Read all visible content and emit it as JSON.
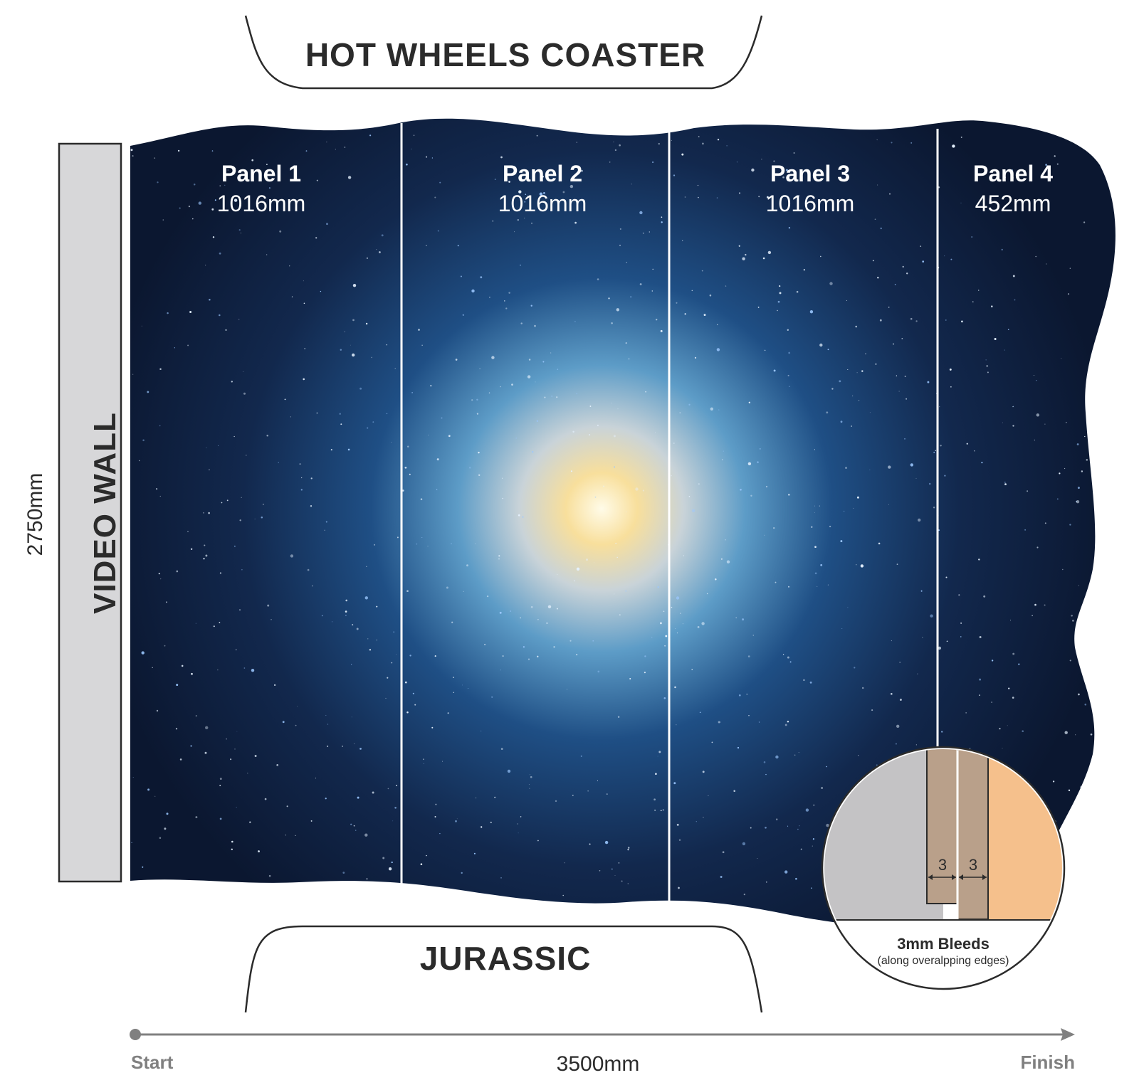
{
  "top_area": {
    "label": "HOT WHEELS COASTER"
  },
  "bottom_area": {
    "label": "JURASSIC"
  },
  "side_wall": {
    "label": "VIDEO WALL"
  },
  "height_dimension": "2750mm",
  "panels": [
    {
      "name": "Panel 1",
      "width": "1016mm"
    },
    {
      "name": "Panel 2",
      "width": "1016mm"
    },
    {
      "name": "Panel 3",
      "width": "1016mm"
    },
    {
      "name": "Panel 4",
      "width": "452mm"
    }
  ],
  "bleed_detail": {
    "left_value": "3",
    "right_value": "3",
    "title": "3mm Bleeds",
    "subtitle": "(along overalpping edges)"
  },
  "axis": {
    "start_label": "Start",
    "total_label": "3500mm",
    "end_label": "Finish"
  },
  "colors": {
    "space_dark": "#0d1a33",
    "space_mid": "#1d4a80",
    "galaxy_core": "#fff3c4",
    "wall_grey": "#d7d7d9",
    "bleed_tan": "#b9a08a",
    "bleed_orange": "#f5c08c",
    "axis_grey": "#808080"
  }
}
